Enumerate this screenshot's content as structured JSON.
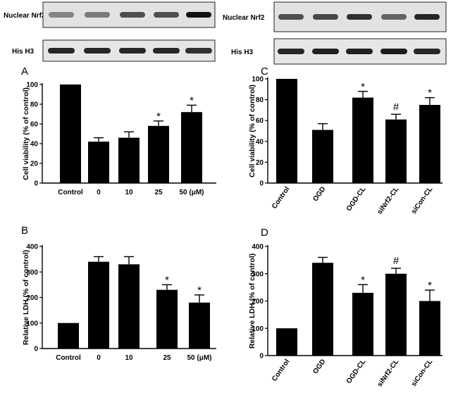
{
  "blots": {
    "left": {
      "top_label": "Nuclear Nrf2",
      "bottom_label": "His H3",
      "top_intensity": [
        0.45,
        0.5,
        0.7,
        0.7,
        1.0
      ],
      "bottom_intensity": [
        0.9,
        0.9,
        0.9,
        0.9,
        0.85
      ]
    },
    "right": {
      "top_label": "Nuclear Nrf2",
      "bottom_label": "His H3",
      "top_intensity": [
        0.7,
        0.75,
        0.85,
        0.6,
        0.9
      ],
      "bottom_intensity": [
        0.9,
        0.92,
        0.92,
        0.95,
        0.9
      ]
    }
  },
  "chart_data": [
    {
      "id": "A",
      "panel_label": "A",
      "type": "bar",
      "ylabel": "Cell viability (% of control)",
      "ylim": [
        0,
        100
      ],
      "yticks": [
        0,
        20,
        40,
        60,
        80,
        100
      ],
      "categories": [
        "Control",
        "0",
        "10",
        "25",
        "50 (μM)"
      ],
      "rotated_labels": false,
      "values": [
        100,
        42,
        46,
        58,
        72
      ],
      "errors": [
        0,
        4,
        6,
        5,
        7
      ],
      "markers": [
        "",
        "",
        "",
        "*",
        "*"
      ],
      "bar_color": "#000000"
    },
    {
      "id": "B",
      "panel_label": "B",
      "type": "bar",
      "ylabel": "Relative LDH (% of control)",
      "ylim": [
        0,
        400
      ],
      "yticks": [
        0,
        100,
        200,
        300,
        400
      ],
      "categories": [
        "Control",
        "0",
        "10",
        "25",
        "50 (μM)"
      ],
      "rotated_labels": false,
      "values": [
        100,
        340,
        330,
        230,
        180
      ],
      "errors": [
        0,
        20,
        30,
        20,
        30
      ],
      "markers": [
        "",
        "",
        "",
        "*",
        "*"
      ],
      "bar_color": "#000000"
    },
    {
      "id": "C",
      "panel_label": "C",
      "type": "bar",
      "ylabel": "Cell viability (% of control)",
      "ylim": [
        0,
        100
      ],
      "yticks": [
        0,
        20,
        40,
        60,
        80,
        100
      ],
      "categories": [
        "Control",
        "OGD",
        "OGD-CL",
        "siNrf2-CL",
        "siCon-CL"
      ],
      "rotated_labels": true,
      "values": [
        100,
        51,
        82,
        61,
        75
      ],
      "errors": [
        0,
        6,
        6,
        5,
        7
      ],
      "markers": [
        "",
        "",
        "*",
        "#",
        "*"
      ],
      "bar_color": "#000000"
    },
    {
      "id": "D",
      "panel_label": "D",
      "type": "bar",
      "ylabel": "Relative LDH (% of control)",
      "ylim": [
        0,
        400
      ],
      "yticks": [
        0,
        100,
        200,
        300,
        400
      ],
      "categories": [
        "Control",
        "OGD",
        "OGD-CL",
        "siNrf2-CL",
        "siCon-CL"
      ],
      "rotated_labels": true,
      "values": [
        100,
        340,
        230,
        300,
        200
      ],
      "errors": [
        0,
        20,
        30,
        20,
        40
      ],
      "markers": [
        "",
        "",
        "*",
        "#",
        "*"
      ],
      "bar_color": "#000000"
    }
  ]
}
